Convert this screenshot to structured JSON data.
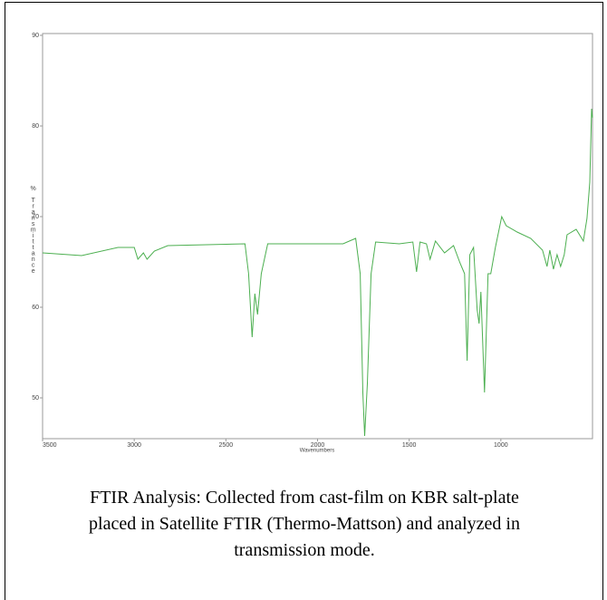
{
  "chart_data": {
    "type": "line",
    "y_label": "% Transmittance",
    "x_label": "Wavenumbers",
    "xlim": [
      3500,
      500
    ],
    "xticks": [
      3500,
      3000,
      2500,
      2000,
      1500,
      1000
    ],
    "ylim": [
      45.5,
      90.2
    ],
    "yticks": [
      50,
      60,
      70,
      80,
      90
    ],
    "color": "#4caf50",
    "x": [
      3500,
      3287,
      3089,
      3000,
      2980,
      2950,
      2930,
      2890,
      2817,
      2396,
      2376,
      2357,
      2342,
      2327,
      2307,
      2272,
      1861,
      1792,
      1767,
      1753,
      1743,
      1728,
      1708,
      1683,
      1554,
      1480,
      1460,
      1441,
      1406,
      1386,
      1357,
      1307,
      1258,
      1223,
      1198,
      1184,
      1169,
      1149,
      1129,
      1119,
      1109,
      1089,
      1070,
      1055,
      1030,
      995,
      971,
      911,
      837,
      773,
      748,
      733,
      713,
      693,
      674,
      654,
      639,
      589,
      550,
      530,
      515,
      505,
      500
    ],
    "values": [
      66.0,
      65.7,
      66.6,
      66.6,
      65.3,
      66.0,
      65.3,
      66.2,
      66.8,
      67.0,
      63.7,
      56.7,
      61.5,
      59.2,
      63.7,
      67.0,
      67.0,
      67.6,
      63.7,
      50.6,
      45.8,
      51.6,
      63.7,
      67.2,
      67.0,
      67.2,
      63.9,
      67.2,
      67.0,
      65.3,
      67.3,
      66.0,
      66.8,
      64.9,
      63.7,
      54.1,
      65.8,
      66.6,
      59.7,
      58.2,
      61.7,
      50.6,
      63.7,
      63.7,
      66.6,
      70.0,
      69.0,
      68.3,
      67.6,
      66.3,
      64.5,
      66.3,
      64.2,
      65.8,
      64.5,
      65.8,
      68.0,
      68.6,
      67.3,
      69.8,
      73.8,
      81.9,
      80.9
    ]
  },
  "caption_lines": [
    "FTIR Analysis: Collected from cast-film on KBR salt-plate",
    "placed in Satellite FTIR (Thermo-Mattson) and analyzed in",
    "transmission mode."
  ]
}
